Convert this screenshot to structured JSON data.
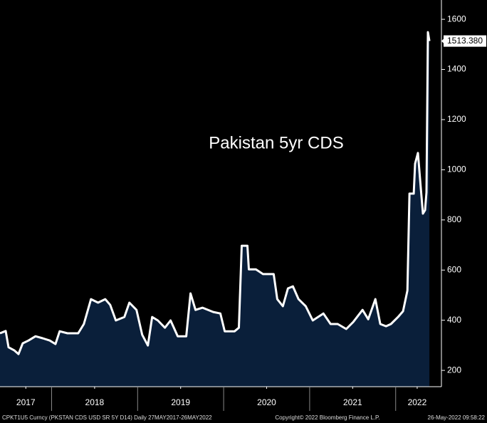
{
  "chart_data": {
    "type": "area",
    "title": "Pakistan 5yr CDS",
    "x": [
      2017.4,
      2017.466,
      2017.499,
      2017.565,
      2017.615,
      2017.664,
      2017.731,
      2017.813,
      2017.896,
      2017.979,
      2018.045,
      2018.094,
      2018.185,
      2018.309,
      2018.375,
      2018.458,
      2018.54,
      2018.623,
      2018.681,
      2018.747,
      2018.846,
      2018.904,
      2018.987,
      2019.053,
      2019.119,
      2019.169,
      2019.235,
      2019.317,
      2019.383,
      2019.466,
      2019.565,
      2019.615,
      2019.673,
      2019.755,
      2019.879,
      2019.962,
      2020.012,
      2020.127,
      2020.177,
      2020.21,
      2020.276,
      2020.293,
      2020.375,
      2020.458,
      2020.582,
      2020.623,
      2020.689,
      2020.747,
      2020.805,
      2020.871,
      2020.954,
      2021.036,
      2021.16,
      2021.243,
      2021.326,
      2021.425,
      2021.507,
      2021.615,
      2021.681,
      2021.764,
      2021.821,
      2021.888,
      2021.945,
      2022.028,
      2022.086,
      2022.136,
      2022.16,
      2022.21,
      2022.226,
      2022.259,
      2022.293,
      2022.317,
      2022.342,
      2022.358,
      2022.375,
      2022.392
    ],
    "values": [
      348,
      357,
      292,
      280,
      265,
      308,
      319,
      336,
      328,
      319,
      305,
      356,
      348,
      348,
      385,
      484,
      470,
      484,
      461,
      399,
      413,
      470,
      441,
      342,
      299,
      413,
      399,
      370,
      399,
      336,
      336,
      507,
      441,
      450,
      433,
      427,
      356,
      356,
      370,
      697,
      697,
      603,
      603,
      584,
      584,
      484,
      456,
      527,
      535,
      484,
      456,
      399,
      427,
      385,
      385,
      365,
      393,
      441,
      404,
      484,
      385,
      376,
      385,
      413,
      436,
      518,
      905,
      905,
      1024,
      1067,
      924,
      825,
      839,
      910,
      1549,
      1513.38
    ],
    "color": "#0a1f3a",
    "line_color": "#ffffff",
    "xlim": [
      2017.4,
      2022.532
    ],
    "xticks": [
      {
        "value": 2017.7,
        "label": "2017"
      },
      {
        "value": 2018.5,
        "label": "2018"
      },
      {
        "value": 2019.5,
        "label": "2019"
      },
      {
        "value": 2020.5,
        "label": "2020"
      },
      {
        "value": 2021.5,
        "label": "2021"
      },
      {
        "value": 2022.25,
        "label": "2022"
      }
    ],
    "year_dividers": [
      2018,
      2019,
      2020,
      2021,
      2022
    ],
    "ylim": [
      135,
      1677
    ],
    "yticks": [
      200,
      400,
      600,
      800,
      1000,
      1200,
      1400,
      1600
    ],
    "last_price": {
      "value": 1513.38,
      "label": "1513.380"
    },
    "footer": {
      "left": "CPKT1U5 Curncy (PKSTAN CDS USD SR 5Y D14)  Daily 27MAY2017-26MAY2022",
      "center": "Copyright© 2022 Bloomberg Finance L.P.",
      "right": "26-May-2022 09:58:22"
    }
  }
}
